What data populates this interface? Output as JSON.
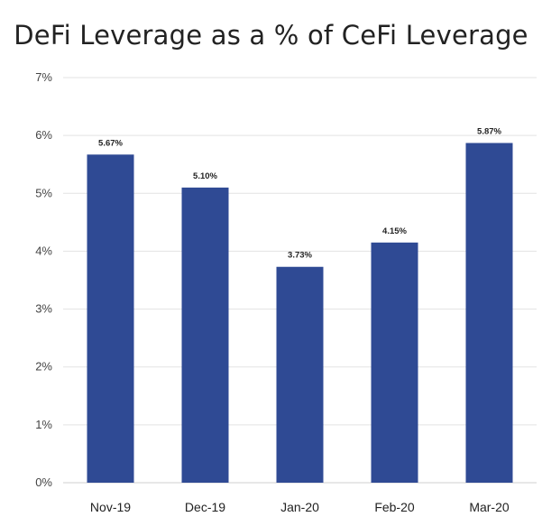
{
  "chart_data": {
    "type": "bar",
    "title": "DeFi Leverage as a % of CeFi Leverage",
    "xlabel": "",
    "ylabel": "",
    "categories": [
      "Nov-19",
      "Dec-19",
      "Jan-20",
      "Feb-20",
      "Mar-20"
    ],
    "values": [
      5.67,
      5.1,
      3.73,
      4.15,
      5.87
    ],
    "data_labels": [
      "5.67%",
      "5.10%",
      "3.73%",
      "4.15%",
      "5.87%"
    ],
    "ylim": [
      0,
      7
    ],
    "yticks": [
      0,
      1,
      2,
      3,
      4,
      5,
      6,
      7
    ],
    "ytick_labels": [
      "0%",
      "1%",
      "2%",
      "3%",
      "4%",
      "5%",
      "6%",
      "7%"
    ],
    "grid": true,
    "legend": "none",
    "colors": {
      "bar": "#2f4a94",
      "grid": "#e3e3e3"
    }
  }
}
